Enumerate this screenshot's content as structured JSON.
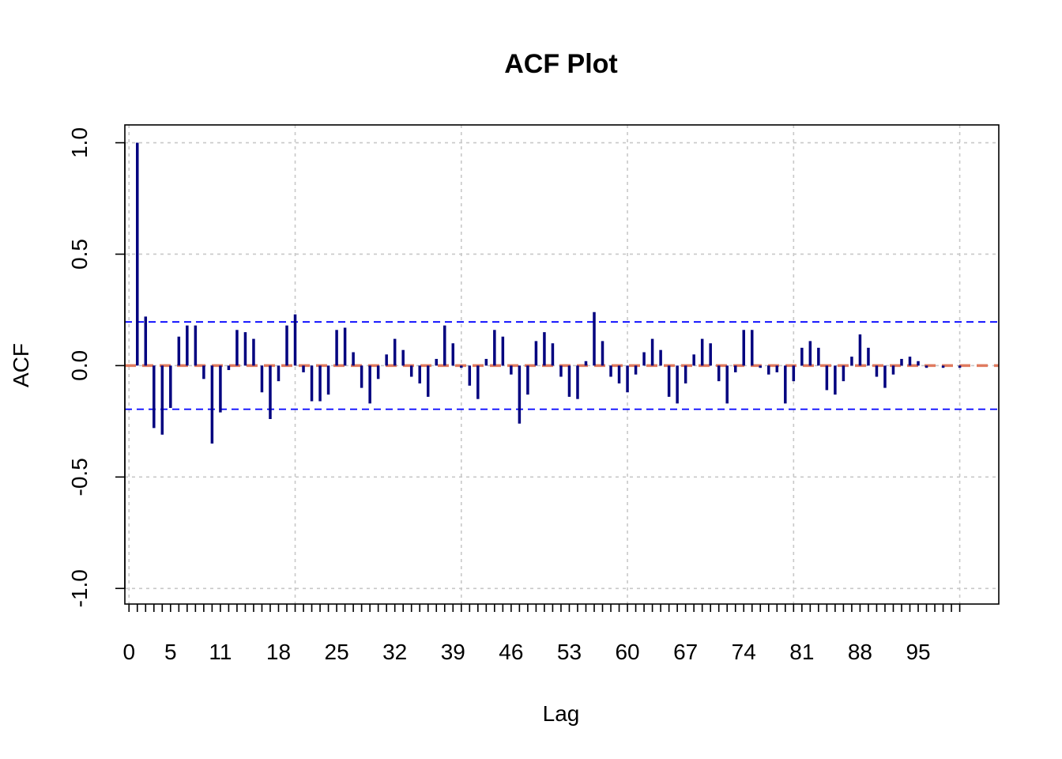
{
  "chart_data": {
    "type": "bar",
    "title": "ACF Plot",
    "xlabel": "Lag",
    "ylabel": "ACF",
    "xlim": [
      -0.5,
      104.7
    ],
    "ylim": [
      -1.07,
      1.08
    ],
    "x_ticks": [
      0,
      1,
      2,
      3,
      4,
      5,
      6,
      7,
      8,
      9,
      10,
      11,
      12,
      13,
      14,
      15,
      16,
      17,
      18,
      19,
      20,
      21,
      22,
      23,
      24,
      25,
      26,
      27,
      28,
      29,
      30,
      31,
      32,
      33,
      34,
      35,
      36,
      37,
      38,
      39,
      40,
      41,
      42,
      43,
      44,
      45,
      46,
      47,
      48,
      49,
      50,
      51,
      52,
      53,
      54,
      55,
      56,
      57,
      58,
      59,
      60,
      61,
      62,
      63,
      64,
      65,
      66,
      67,
      68,
      69,
      70,
      71,
      72,
      73,
      74,
      75,
      76,
      77,
      78,
      79,
      80,
      81,
      82,
      83,
      84,
      85,
      86,
      87,
      88,
      89,
      90,
      91,
      92,
      93,
      94,
      95,
      96,
      97,
      98,
      99,
      100
    ],
    "x_tick_labels": [
      "0",
      "5",
      "11",
      "18",
      "25",
      "32",
      "39",
      "46",
      "53",
      "60",
      "67",
      "74",
      "81",
      "88",
      "95"
    ],
    "x_tick_label_positions": [
      0,
      5,
      11,
      18,
      25,
      32,
      39,
      46,
      53,
      60,
      67,
      74,
      81,
      88,
      95
    ],
    "y_ticks": [
      1.0,
      0.5,
      0.0,
      -0.5,
      -1.0
    ],
    "y_tick_labels": [
      "1.0",
      "0.5",
      "0.0",
      "-0.5",
      "-1.0"
    ],
    "x_grid": [
      0,
      20,
      40,
      60,
      80,
      100
    ],
    "grid": true,
    "confidence_bounds": [
      0.196,
      -0.196
    ],
    "zero_line_color": "#E07B5F",
    "bound_color": "#0000FF",
    "bar_color": "#00007F",
    "grid_color": "#C8C8C8",
    "lags": [
      1,
      2,
      3,
      4,
      5,
      6,
      7,
      8,
      9,
      10,
      11,
      12,
      13,
      14,
      15,
      16,
      17,
      18,
      19,
      20,
      21,
      22,
      23,
      24,
      25,
      26,
      27,
      28,
      29,
      30,
      31,
      32,
      33,
      34,
      35,
      36,
      37,
      38,
      39,
      40,
      41,
      42,
      43,
      44,
      45,
      46,
      47,
      48,
      49,
      50,
      51,
      52,
      53,
      54,
      55,
      56,
      57,
      58,
      59,
      60,
      61,
      62,
      63,
      64,
      65,
      66,
      67,
      68,
      69,
      70,
      71,
      72,
      73,
      74,
      75,
      76,
      77,
      78,
      79,
      80,
      81,
      82,
      83,
      84,
      85,
      86,
      87,
      88,
      89,
      90,
      91,
      92,
      93,
      94,
      95,
      96,
      97,
      98,
      99,
      100,
      101
    ],
    "values": [
      1.0,
      0.22,
      -0.28,
      -0.31,
      -0.19,
      0.13,
      0.18,
      0.18,
      -0.06,
      -0.35,
      -0.21,
      -0.02,
      0.16,
      0.15,
      0.12,
      -0.12,
      -0.24,
      -0.07,
      0.18,
      0.23,
      -0.03,
      -0.16,
      -0.16,
      -0.13,
      0.16,
      0.17,
      0.06,
      -0.1,
      -0.17,
      -0.06,
      0.05,
      0.12,
      0.07,
      -0.05,
      -0.08,
      -0.14,
      0.03,
      0.18,
      0.1,
      -0.01,
      -0.09,
      -0.15,
      0.03,
      0.16,
      0.13,
      -0.04,
      -0.26,
      -0.13,
      0.11,
      0.15,
      0.1,
      -0.05,
      -0.14,
      -0.15,
      0.02,
      0.24,
      0.11,
      -0.05,
      -0.08,
      -0.12,
      -0.04,
      0.06,
      0.12,
      0.07,
      -0.14,
      -0.17,
      -0.08,
      0.05,
      0.12,
      0.1,
      -0.07,
      -0.17,
      -0.03,
      0.16,
      0.16,
      -0.01,
      -0.04,
      -0.03,
      -0.17,
      -0.07,
      0.08,
      0.11,
      0.08,
      -0.11,
      -0.13,
      -0.07,
      0.04,
      0.14,
      0.08,
      -0.05,
      -0.1,
      -0.04,
      0.03,
      0.04,
      0.02,
      -0.01,
      0.0,
      -0.01,
      0.0,
      -0.01,
      0.0
    ]
  }
}
